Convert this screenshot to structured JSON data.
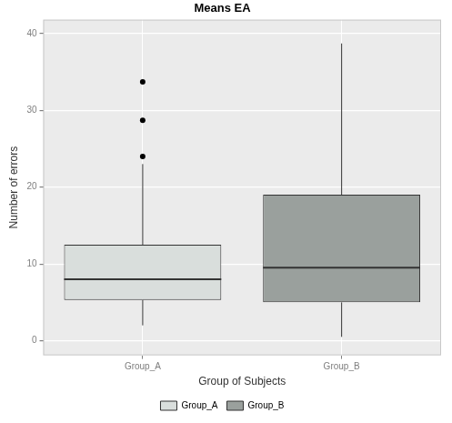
{
  "chart_data": {
    "type": "boxplot",
    "title": "Means EA",
    "x_label": "Group of Subjects",
    "y_label": "Number of errors",
    "categories": [
      "Group_A",
      "Group_B"
    ],
    "series": [
      {
        "name": "Group_A",
        "color": "#d9dedc",
        "whisker_low": 2,
        "q1": 5.3,
        "median": 8,
        "q3": 12.5,
        "whisker_high": 23,
        "outliers": [
          24,
          28.7,
          33.7
        ]
      },
      {
        "name": "Group_B",
        "color": "#9aa09d",
        "whisker_low": 0.5,
        "q1": 5,
        "median": 9.5,
        "q3": 19,
        "whisker_high": 38.7,
        "outliers": []
      }
    ],
    "ylim": [
      -1.9,
      41.8
    ],
    "yticks": [
      0,
      10,
      20,
      30,
      40
    ],
    "grid": true,
    "legend": "bottom"
  }
}
